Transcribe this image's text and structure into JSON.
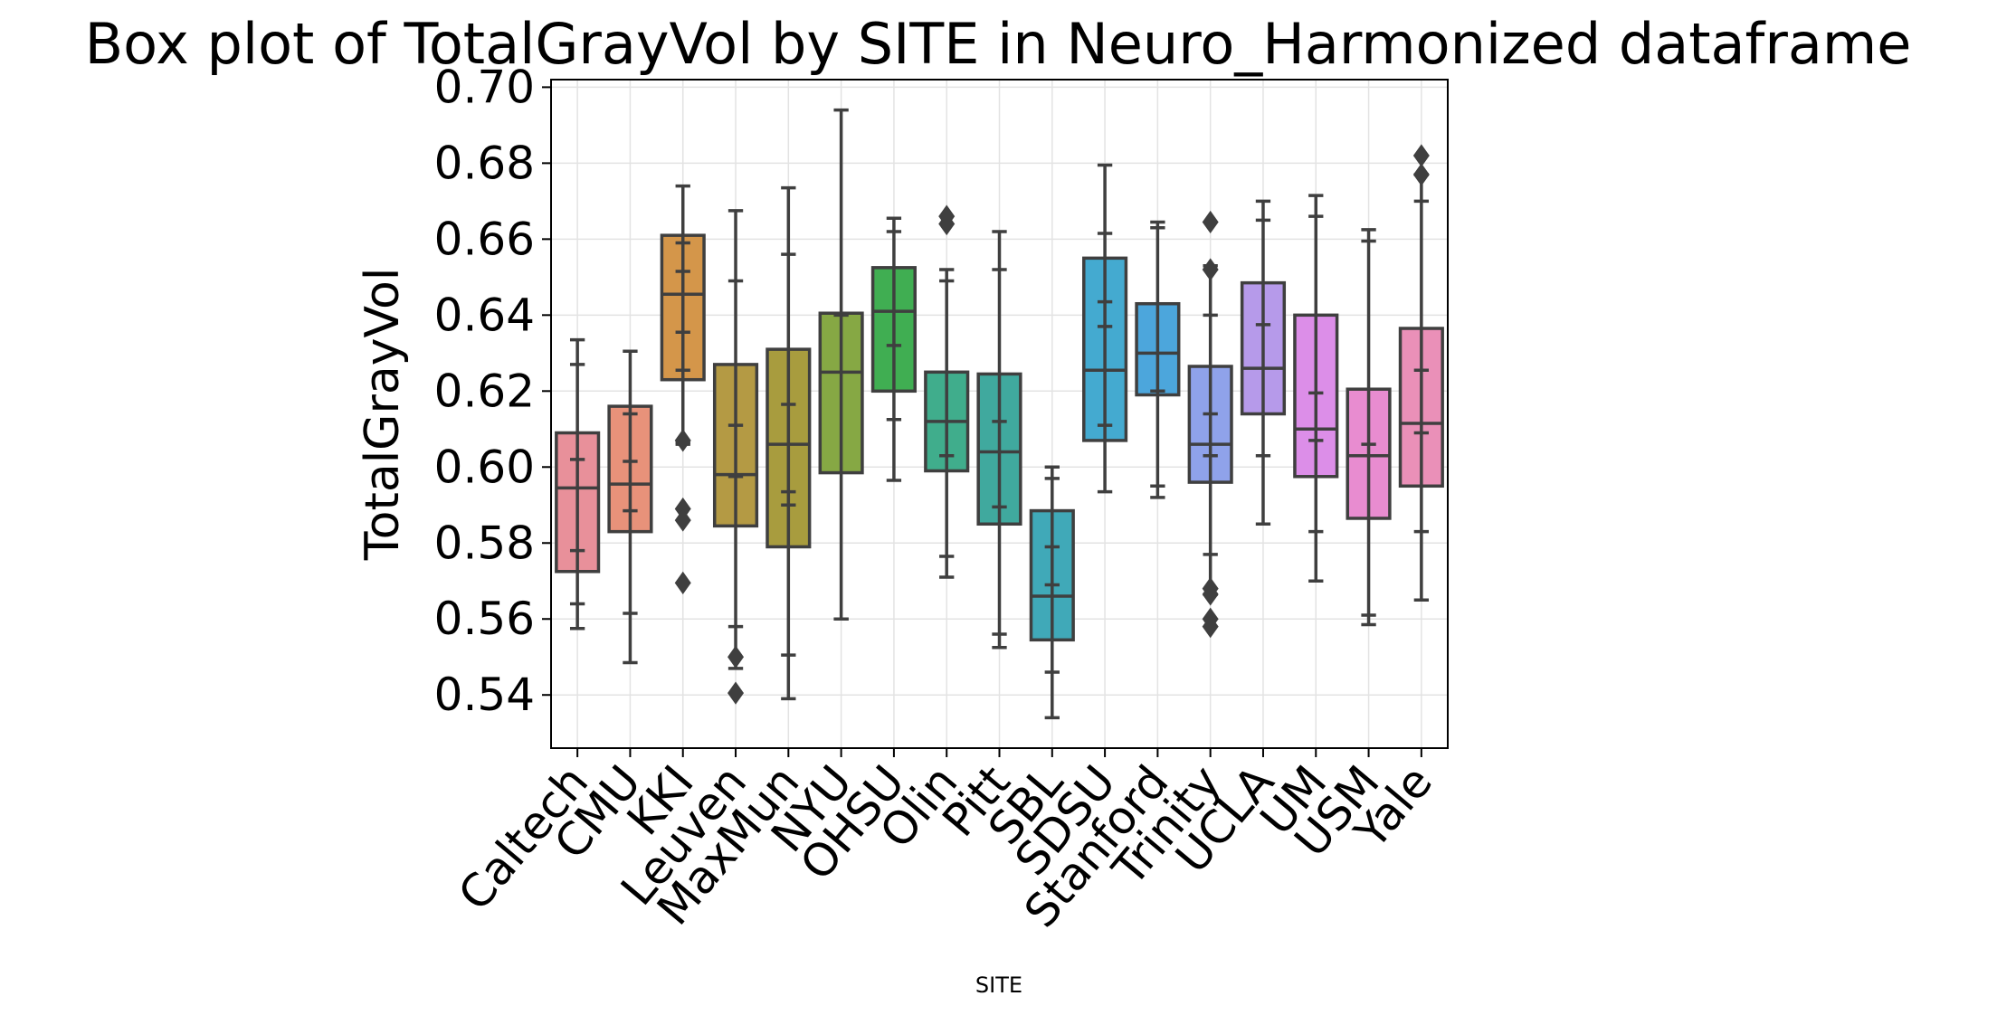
{
  "chart_data": {
    "type": "box",
    "title": "Box plot of TotalGrayVol by SITE in Neuro_Harmonized dataframe",
    "xlabel": "SITE",
    "ylabel": "TotalGrayVol",
    "ylim": [
      0.526,
      0.702
    ],
    "yticks": [
      0.54,
      0.56,
      0.58,
      0.6,
      0.62,
      0.64,
      0.66,
      0.68,
      0.7
    ],
    "ytick_labels": [
      "0.54",
      "0.56",
      "0.58",
      "0.60",
      "0.62",
      "0.64",
      "0.66",
      "0.68",
      "0.70"
    ],
    "grid": true,
    "categories": [
      "Caltech",
      "CMU",
      "KKI",
      "Leuven",
      "MaxMun",
      "NYU",
      "OHSU",
      "Olin",
      "Pitt",
      "SBL",
      "SDSU",
      "Stanford",
      "Trinity",
      "UCLA",
      "UM",
      "USM",
      "Yale"
    ],
    "colors": [
      "#e8909a",
      "#e8927a",
      "#d4964a",
      "#b49a44",
      "#a89c3e",
      "#86a844",
      "#40ae52",
      "#40ad8c",
      "#40a99e",
      "#40a9b8",
      "#44aad0",
      "#4ca6dc",
      "#8fa2ea",
      "#b69aea",
      "#dc8ee8",
      "#e88cd0",
      "#ea90b8"
    ],
    "boxes": [
      {
        "q1": 0.5725,
        "median": 0.5945,
        "q3": 0.609,
        "whislo": 0.5575,
        "whishi": 0.6335,
        "fliers": [],
        "inner": [
          0.602,
          0.578,
          0.564,
          0.627
        ]
      },
      {
        "q1": 0.583,
        "median": 0.5955,
        "q3": 0.616,
        "whislo": 0.5485,
        "whishi": 0.6305,
        "fliers": [],
        "inner": [
          0.6015,
          0.614,
          0.5885,
          0.5615
        ]
      },
      {
        "q1": 0.623,
        "median": 0.6455,
        "q3": 0.661,
        "whislo": 0.6065,
        "whishi": 0.674,
        "fliers": [
          0.607,
          0.589,
          0.586,
          0.5695
        ],
        "inner": [
          0.6515,
          0.6355,
          0.6255,
          0.659,
          0.606
        ]
      },
      {
        "q1": 0.5845,
        "median": 0.598,
        "q3": 0.627,
        "whislo": 0.547,
        "whishi": 0.6675,
        "fliers": [
          0.55,
          0.5405
        ],
        "inner": [
          0.611,
          0.5975,
          0.649,
          0.558
        ]
      },
      {
        "q1": 0.579,
        "median": 0.606,
        "q3": 0.631,
        "whislo": 0.539,
        "whishi": 0.6735,
        "fliers": [],
        "inner": [
          0.6165,
          0.59,
          0.5935,
          0.656,
          0.5505
        ]
      },
      {
        "q1": 0.5985,
        "median": 0.625,
        "q3": 0.6405,
        "whislo": 0.56,
        "whishi": 0.694,
        "fliers": [],
        "inner": [
          0.64,
          0.56
        ]
      },
      {
        "q1": 0.62,
        "median": 0.641,
        "q3": 0.6525,
        "whislo": 0.5965,
        "whishi": 0.6655,
        "fliers": [],
        "inner": [
          0.632,
          0.662,
          0.6125
        ]
      },
      {
        "q1": 0.599,
        "median": 0.612,
        "q3": 0.625,
        "whislo": 0.571,
        "whishi": 0.652,
        "fliers": [
          0.666,
          0.664
        ],
        "inner": [
          0.603,
          0.649,
          0.5765
        ]
      },
      {
        "q1": 0.585,
        "median": 0.604,
        "q3": 0.6245,
        "whislo": 0.5525,
        "whishi": 0.662,
        "fliers": [],
        "inner": [
          0.612,
          0.5895,
          0.556,
          0.652
        ]
      },
      {
        "q1": 0.5545,
        "median": 0.566,
        "q3": 0.5885,
        "whislo": 0.534,
        "whishi": 0.6,
        "fliers": [],
        "inner": [
          0.569,
          0.579,
          0.597,
          0.546
        ]
      },
      {
        "q1": 0.607,
        "median": 0.6255,
        "q3": 0.655,
        "whislo": 0.5935,
        "whishi": 0.6795,
        "fliers": [],
        "inner": [
          0.637,
          0.6435,
          0.611,
          0.6615
        ]
      },
      {
        "q1": 0.619,
        "median": 0.63,
        "q3": 0.643,
        "whislo": 0.592,
        "whishi": 0.6645,
        "fliers": [],
        "inner": [
          0.62,
          0.663,
          0.595
        ]
      },
      {
        "q1": 0.596,
        "median": 0.606,
        "q3": 0.6265,
        "whislo": 0.5665,
        "whishi": 0.653,
        "fliers": [
          0.6645,
          0.652,
          0.568,
          0.5665,
          0.56,
          0.558
        ],
        "inner": [
          0.614,
          0.603,
          0.64,
          0.577
        ]
      },
      {
        "q1": 0.614,
        "median": 0.626,
        "q3": 0.6485,
        "whislo": 0.585,
        "whishi": 0.67,
        "fliers": [],
        "inner": [
          0.6375,
          0.665,
          0.603
        ]
      },
      {
        "q1": 0.5975,
        "median": 0.61,
        "q3": 0.64,
        "whislo": 0.57,
        "whishi": 0.6715,
        "fliers": [],
        "inner": [
          0.6195,
          0.607,
          0.666,
          0.583
        ]
      },
      {
        "q1": 0.5865,
        "median": 0.603,
        "q3": 0.6205,
        "whislo": 0.5585,
        "whishi": 0.6625,
        "fliers": [],
        "inner": [
          0.606,
          0.6595,
          0.561
        ]
      },
      {
        "q1": 0.595,
        "median": 0.6115,
        "q3": 0.6365,
        "whislo": 0.565,
        "whishi": 0.677,
        "fliers": [
          0.682,
          0.677
        ],
        "inner": [
          0.6255,
          0.609,
          0.67,
          0.583
        ]
      }
    ]
  }
}
